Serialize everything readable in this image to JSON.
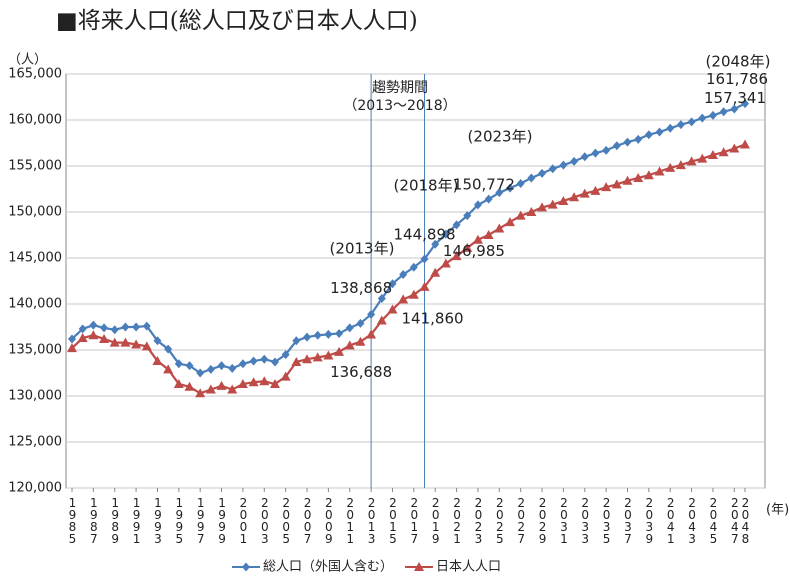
{
  "chart_data": {
    "type": "line",
    "title": "■将来人口(総人口及び日本人人口)",
    "y_label": "（人）",
    "x_label": "(年)",
    "x": [
      1985,
      1986,
      1987,
      1988,
      1989,
      1990,
      1991,
      1992,
      1993,
      1994,
      1995,
      1996,
      1997,
      1998,
      1999,
      2000,
      2001,
      2002,
      2003,
      2004,
      2005,
      2006,
      2007,
      2008,
      2009,
      2010,
      2011,
      2012,
      2013,
      2014,
      2015,
      2016,
      2017,
      2018,
      2019,
      2020,
      2021,
      2022,
      2023,
      2024,
      2025,
      2026,
      2027,
      2028,
      2029,
      2030,
      2031,
      2032,
      2033,
      2034,
      2035,
      2036,
      2037,
      2038,
      2039,
      2040,
      2041,
      2042,
      2043,
      2044,
      2045,
      2046,
      2047,
      2048
    ],
    "xlim": [
      1985,
      2048
    ],
    "xticks": [
      1985,
      1987,
      1989,
      1991,
      1993,
      1995,
      1997,
      1999,
      2001,
      2003,
      2005,
      2007,
      2009,
      2011,
      2013,
      2015,
      2017,
      2019,
      2021,
      2023,
      2025,
      2027,
      2029,
      2031,
      2033,
      2035,
      2037,
      2039,
      2041,
      2043,
      2045,
      2047,
      2048
    ],
    "ylim": [
      120000,
      165000
    ],
    "yticks": [
      {
        "value": 120000,
        "label": "120,000"
      },
      {
        "value": 125000,
        "label": "125,000"
      },
      {
        "value": 130000,
        "label": "130,000"
      },
      {
        "value": 135000,
        "label": "135,000"
      },
      {
        "value": 140000,
        "label": "140,000"
      },
      {
        "value": 145000,
        "label": "145,000"
      },
      {
        "value": 150000,
        "label": "150,000"
      },
      {
        "value": 155000,
        "label": "155,000"
      },
      {
        "value": 160000,
        "label": "160,000"
      },
      {
        "value": 165000,
        "label": "165,000"
      }
    ],
    "grid": true,
    "reference_lines": [
      2013,
      2018
    ],
    "legend": "bottom",
    "series": [
      {
        "name": "総人口（外国人含む）",
        "color": "#4a7ebb",
        "marker": "diamond",
        "values": [
          136200,
          137300,
          137700,
          137400,
          137200,
          137500,
          137500,
          137600,
          136000,
          135100,
          133500,
          133300,
          132500,
          132900,
          133300,
          133000,
          133500,
          133800,
          134000,
          133700,
          134500,
          136000,
          136400,
          136600,
          136700,
          136800,
          137400,
          137900,
          138868,
          140600,
          142200,
          143200,
          144000,
          144898,
          146500,
          147600,
          148600,
          149600,
          150772,
          151400,
          152100,
          152600,
          153100,
          153700,
          154200,
          154700,
          155100,
          155500,
          156000,
          156400,
          156700,
          157200,
          157600,
          157900,
          158400,
          158700,
          159100,
          159500,
          159800,
          160200,
          160500,
          160900,
          161200,
          161786
        ],
        "value_labels": [
          null,
          null,
          null,
          null,
          null,
          null,
          null,
          null,
          null,
          null,
          null,
          null,
          null,
          null,
          null,
          null,
          null,
          null,
          null,
          null,
          null,
          null,
          null,
          null,
          null,
          null,
          null,
          null,
          "138,868",
          null,
          null,
          null,
          null,
          "144,898",
          null,
          null,
          null,
          null,
          "150,772",
          null,
          null,
          null,
          null,
          null,
          null,
          null,
          null,
          null,
          null,
          null,
          null,
          null,
          null,
          null,
          null,
          null,
          null,
          null,
          null,
          null,
          null,
          null,
          null,
          "161,786"
        ]
      },
      {
        "name": "日本人人口",
        "color": "#be4b48",
        "marker": "triangle",
        "values": [
          135200,
          136300,
          136600,
          136200,
          135800,
          135800,
          135600,
          135400,
          133800,
          132900,
          131300,
          131000,
          130300,
          130700,
          131100,
          130700,
          131300,
          131500,
          131600,
          131300,
          132100,
          133700,
          134000,
          134200,
          134400,
          134800,
          135500,
          135900,
          136688,
          138200,
          139400,
          140500,
          141000,
          141860,
          143400,
          144400,
          145200,
          146100,
          146985,
          147500,
          148200,
          148900,
          149600,
          150000,
          150500,
          150800,
          151200,
          151600,
          152000,
          152300,
          152700,
          153000,
          153400,
          153700,
          154000,
          154400,
          154800,
          155100,
          155500,
          155800,
          156200,
          156500,
          156900,
          157341
        ],
        "value_labels": [
          null,
          null,
          null,
          null,
          null,
          null,
          null,
          null,
          null,
          null,
          null,
          null,
          null,
          null,
          null,
          null,
          null,
          null,
          null,
          null,
          null,
          null,
          null,
          null,
          null,
          null,
          null,
          null,
          "136,688",
          null,
          null,
          null,
          null,
          "141,860",
          null,
          null,
          null,
          null,
          "146,985",
          null,
          null,
          null,
          null,
          null,
          null,
          null,
          null,
          null,
          null,
          null,
          null,
          null,
          null,
          null,
          null,
          null,
          null,
          null,
          null,
          null,
          null,
          null,
          null,
          "157,341"
        ]
      }
    ],
    "annotations": [
      "趨勢期間",
      "（2013～2018）",
      "(2013年)",
      "(2018年)",
      "(2023年)",
      "(2048年)"
    ]
  }
}
